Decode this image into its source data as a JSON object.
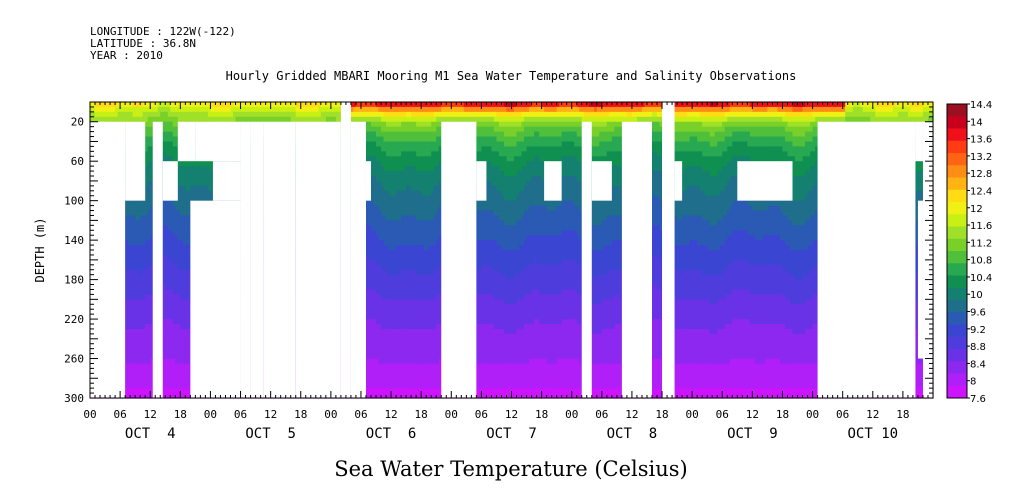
{
  "header": {
    "longitude": "LONGITUDE : 122W(-122)",
    "latitude": "LATITUDE : 36.8N",
    "year": "YEAR : 2010"
  },
  "chart_data": {
    "type": "heatmap",
    "title": "Hourly Gridded MBARI Mooring M1 Sea Water Temperature and Salinity Observations",
    "xlabel": "Sea Water Temperature (Celsius)",
    "ylabel": "DEPTH (m)",
    "x_range_hours": [
      0,
      168
    ],
    "y_range_m": [
      0,
      300
    ],
    "y_ticks": [
      20,
      60,
      100,
      140,
      180,
      220,
      260,
      300
    ],
    "x_hour_ticks": [
      "00",
      "06",
      "12",
      "18",
      "00",
      "06",
      "12",
      "18",
      "00",
      "06",
      "12",
      "18",
      "00",
      "06",
      "12",
      "18",
      "00",
      "06",
      "12",
      "18",
      "00",
      "06",
      "12",
      "18",
      "00",
      "06",
      "12",
      "18"
    ],
    "day_labels": [
      "OCT  4",
      "OCT  5",
      "OCT  6",
      "OCT  7",
      "OCT  8",
      "OCT  9",
      "OCT 10"
    ],
    "colorbar": {
      "labels": [
        "14.4",
        "14",
        "13.6",
        "13.2",
        "12.8",
        "12.4",
        "12",
        "11.6",
        "11.2",
        "10.8",
        "10.4",
        "10",
        "9.6",
        "9.2",
        "8.8",
        "8.4",
        "8",
        "7.6"
      ],
      "colors": [
        "#9b1020",
        "#c8001c",
        "#f0101c",
        "#ff3c14",
        "#ff6414",
        "#ff8c14",
        "#ffb414",
        "#ffdc14",
        "#f0f014",
        "#c8f014",
        "#a0e028",
        "#78d028",
        "#50c03c",
        "#28a850",
        "#109050",
        "#148070",
        "#1e6e8c",
        "#2a5ab4",
        "#3a46d2",
        "#4e3cdc",
        "#6a32e6",
        "#8c28f0",
        "#b01ef8",
        "#cc14ff"
      ]
    },
    "temperature_profile": {
      "depth_m": [
        0,
        10,
        20,
        40,
        60,
        80,
        100,
        140,
        180,
        220,
        260,
        300
      ],
      "value_c": [
        12.2,
        11.6,
        11.2,
        10.6,
        10.2,
        9.9,
        9.7,
        9.3,
        8.9,
        8.5,
        8.2,
        7.8
      ]
    },
    "warm_period": {
      "start_hour": 50,
      "end_hour": 150,
      "surface_c": 13.8
    },
    "missing_blocks": [
      {
        "h0": 0,
        "h1": 7,
        "d0": 20,
        "d1": 300
      },
      {
        "h0": 7,
        "h1": 11,
        "d0": 20,
        "d1": 100
      },
      {
        "h0": 12.5,
        "h1": 14.5,
        "d0": 20,
        "d1": 300
      },
      {
        "h0": 14.5,
        "h1": 17.5,
        "d0": 60,
        "d1": 100
      },
      {
        "h0": 17.5,
        "h1": 21,
        "d0": 20,
        "d1": 60
      },
      {
        "h0": 20,
        "h1": 30,
        "d0": 100,
        "d1": 300
      },
      {
        "h0": 21,
        "h1": 30,
        "d0": 20,
        "d1": 60
      },
      {
        "h0": 24.5,
        "h1": 27,
        "d0": 60,
        "d1": 100
      },
      {
        "h0": 27,
        "h1": 30,
        "d0": 60,
        "d1": 100
      },
      {
        "h0": 30,
        "h1": 32,
        "d0": 20,
        "d1": 300
      },
      {
        "h0": 32,
        "h1": 34.5,
        "d0": 20,
        "d1": 300
      },
      {
        "h0": 34.5,
        "h1": 41,
        "d0": 20,
        "d1": 300
      },
      {
        "h0": 41,
        "h1": 50,
        "d0": 20,
        "d1": 300
      },
      {
        "h0": 50,
        "h1": 52,
        "d0": 0,
        "d1": 300
      },
      {
        "h0": 52,
        "h1": 55,
        "d0": 20,
        "d1": 300
      },
      {
        "h0": 55,
        "h1": 56,
        "d0": 60,
        "d1": 100
      },
      {
        "h0": 70,
        "h1": 77,
        "d0": 20,
        "d1": 300
      },
      {
        "h0": 77,
        "h1": 79,
        "d0": 60,
        "d1": 100
      },
      {
        "h0": 90.5,
        "h1": 94,
        "d0": 60,
        "d1": 100
      },
      {
        "h0": 98,
        "h1": 100,
        "d0": 20,
        "d1": 300
      },
      {
        "h0": 100,
        "h1": 104,
        "d0": 60,
        "d1": 100
      },
      {
        "h0": 106,
        "h1": 112,
        "d0": 20,
        "d1": 300
      },
      {
        "h0": 114,
        "h1": 116.5,
        "d0": 0,
        "d1": 300
      },
      {
        "h0": 116.5,
        "h1": 118,
        "d0": 60,
        "d1": 100
      },
      {
        "h0": 129,
        "h1": 140,
        "d0": 60,
        "d1": 100
      },
      {
        "h0": 145,
        "h1": 164.5,
        "d0": 20,
        "d1": 300
      },
      {
        "h0": 164.5,
        "h1": 166,
        "d0": 20,
        "d1": 60
      },
      {
        "h0": 165,
        "h1": 166,
        "d0": 100,
        "d1": 260
      },
      {
        "h0": 166,
        "h1": 168,
        "d0": 20,
        "d1": 300
      }
    ]
  }
}
